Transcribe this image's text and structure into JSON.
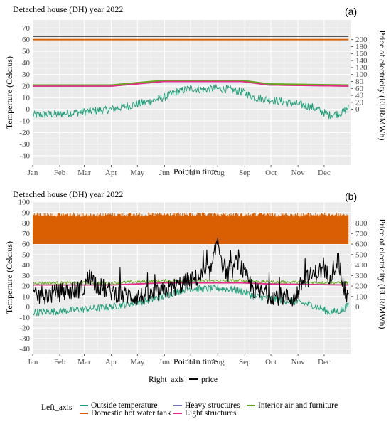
{
  "colors": {
    "outside": "#1b9e77",
    "tank": "#d95f02",
    "heavy": "#7570b3",
    "light": "#e7298a",
    "interior": "#66a61e",
    "price": "#000000",
    "panel_bg": "#ebebeb",
    "grid_major": "#ffffff"
  },
  "legend": {
    "right_axis_title": "Right_axis",
    "left_axis_title": "Left_axis",
    "items": {
      "price": "price",
      "outside": "Outside temperature",
      "tank": "Domestic hot water tank",
      "heavy": "Heavy structures",
      "light": "Light structures",
      "interior": "Interior air and furniture"
    }
  },
  "chart_data": [
    {
      "type": "line",
      "panel_tag": "(a)",
      "title": "Detached house (DH)  year 2022",
      "xlabel": "Point in time",
      "ylabel": "Temperture (Celcius)",
      "ylabel_right": "Price of electricity (EUR/MWh)",
      "xlim": [
        0,
        365
      ],
      "ylim": [
        -48,
        77
      ],
      "y_ticks": [
        -40,
        -30,
        -20,
        -10,
        0,
        10,
        20,
        30,
        40,
        50,
        60,
        70
      ],
      "y_right_ticks": [
        0,
        20,
        40,
        60,
        80,
        100,
        120,
        140,
        160,
        180,
        200
      ],
      "right_axis_map": {
        "price_at_zero_temp": 0,
        "temp_per_price_unit": 0.3
      },
      "x_tick_labels": [
        "Jan",
        "Feb",
        "Mar",
        "Apr",
        "May",
        "Jun",
        "Jul",
        "Aug",
        "Sep",
        "Oct",
        "Nov",
        "Dec"
      ],
      "x_tick_days": [
        0,
        31,
        59,
        90,
        120,
        151,
        181,
        212,
        243,
        273,
        304,
        334
      ],
      "grid": true,
      "series": [
        {
          "key": "outside",
          "name": "Outside temperature",
          "axis": "left",
          "style": "noisy",
          "x": [
            0,
            30,
            60,
            90,
            110,
            130,
            150,
            165,
            180,
            195,
            210,
            225,
            240,
            255,
            275,
            300,
            320,
            340,
            355,
            362
          ],
          "y": [
            -5,
            -4,
            -2,
            0,
            3,
            6,
            10,
            15,
            18,
            17,
            18,
            17,
            15,
            10,
            8,
            5,
            2,
            -5,
            -3,
            2
          ],
          "noise": 3.5
        },
        {
          "key": "tank",
          "name": "Domestic hot water tank",
          "axis": "left",
          "style": "line",
          "x": [
            0,
            362
          ],
          "y": [
            60,
            60
          ]
        },
        {
          "key": "heavy",
          "name": "Heavy structures",
          "axis": "left",
          "style": "line",
          "x": [
            0,
            90,
            120,
            150,
            240,
            270,
            362
          ],
          "y": [
            20,
            20,
            22,
            24,
            24,
            21,
            20
          ]
        },
        {
          "key": "light",
          "name": "Light structures",
          "axis": "left",
          "style": "line",
          "x": [
            0,
            90,
            120,
            150,
            240,
            270,
            362
          ],
          "y": [
            20,
            20,
            22,
            24,
            24,
            21,
            20
          ]
        },
        {
          "key": "interior",
          "name": "Interior air and furniture",
          "axis": "left",
          "style": "line",
          "x": [
            0,
            90,
            120,
            150,
            240,
            270,
            362
          ],
          "y": [
            21,
            21,
            23,
            25,
            25,
            22,
            21
          ]
        },
        {
          "key": "price",
          "name": "price",
          "axis": "right",
          "style": "line",
          "x": [
            0,
            362
          ],
          "y": [
            210,
            210
          ]
        }
      ]
    },
    {
      "type": "line",
      "panel_tag": "(b)",
      "title": "Detached house (DH)  year 2022",
      "xlabel": "Point in time",
      "ylabel": "Temperture (Celcius)",
      "ylabel_right": "Price of electricity (EUR/MWh)",
      "xlim": [
        0,
        365
      ],
      "ylim": [
        -45,
        100
      ],
      "y_ticks": [
        -40,
        -30,
        -20,
        -10,
        0,
        10,
        20,
        30,
        40,
        50,
        60,
        70,
        80,
        90,
        100
      ],
      "y_right_ticks": [
        0,
        100,
        200,
        300,
        400,
        500,
        600,
        700,
        800
      ],
      "right_axis_map": {
        "price_at_zero_temp": 0,
        "temp_per_price_unit": 0.1
      },
      "x_tick_labels": [
        "Jan",
        "Feb",
        "Mar",
        "Apr",
        "May",
        "Jun",
        "Jul",
        "Aug",
        "Sep",
        "Oct",
        "Nov",
        "Dec"
      ],
      "x_tick_days": [
        0,
        31,
        59,
        90,
        120,
        151,
        181,
        212,
        243,
        273,
        304,
        334
      ],
      "grid": true,
      "series": [
        {
          "key": "outside",
          "name": "Outside temperature",
          "axis": "left",
          "style": "noisy",
          "x": [
            0,
            30,
            60,
            90,
            110,
            130,
            150,
            165,
            180,
            195,
            210,
            225,
            240,
            255,
            275,
            300,
            320,
            340,
            355,
            362
          ],
          "y": [
            -5,
            -4,
            -2,
            0,
            3,
            6,
            10,
            15,
            18,
            17,
            18,
            17,
            15,
            10,
            8,
            5,
            2,
            -5,
            -3,
            2
          ],
          "noise": 3.5
        },
        {
          "key": "tank",
          "name": "Domestic hot water tank",
          "axis": "left",
          "style": "band",
          "x": [
            0,
            362
          ],
          "y_low": [
            60,
            60
          ],
          "y_high": [
            90,
            90
          ]
        },
        {
          "key": "heavy",
          "name": "Heavy structures",
          "axis": "left",
          "style": "line",
          "x": [
            0,
            90,
            120,
            150,
            240,
            270,
            362
          ],
          "y": [
            21,
            21,
            22,
            23,
            23,
            22,
            21
          ]
        },
        {
          "key": "light",
          "name": "Light structures",
          "axis": "left",
          "style": "line",
          "x": [
            0,
            90,
            120,
            150,
            240,
            270,
            362
          ],
          "y": [
            21,
            21,
            22,
            23,
            23,
            22,
            21
          ]
        },
        {
          "key": "interior",
          "name": "Interior air and furniture",
          "axis": "left",
          "style": "noisy",
          "x": [
            0,
            90,
            120,
            150,
            240,
            270,
            362
          ],
          "y": [
            23,
            23,
            24,
            25,
            25,
            24,
            23
          ],
          "noise": 1.5
        },
        {
          "key": "price",
          "name": "price",
          "axis": "right",
          "style": "noisy",
          "x": [
            0,
            20,
            40,
            59,
            65,
            75,
            90,
            100,
            120,
            135,
            151,
            165,
            181,
            195,
            205,
            212,
            218,
            225,
            235,
            243,
            255,
            270,
            285,
            300,
            310,
            320,
            330,
            340,
            350,
            356,
            362
          ],
          "y": [
            100,
            120,
            150,
            180,
            300,
            200,
            150,
            120,
            100,
            110,
            150,
            200,
            250,
            300,
            350,
            650,
            400,
            300,
            450,
            300,
            150,
            120,
            100,
            80,
            250,
            300,
            350,
            300,
            450,
            200,
            50
          ],
          "noise": 90
        }
      ]
    }
  ]
}
